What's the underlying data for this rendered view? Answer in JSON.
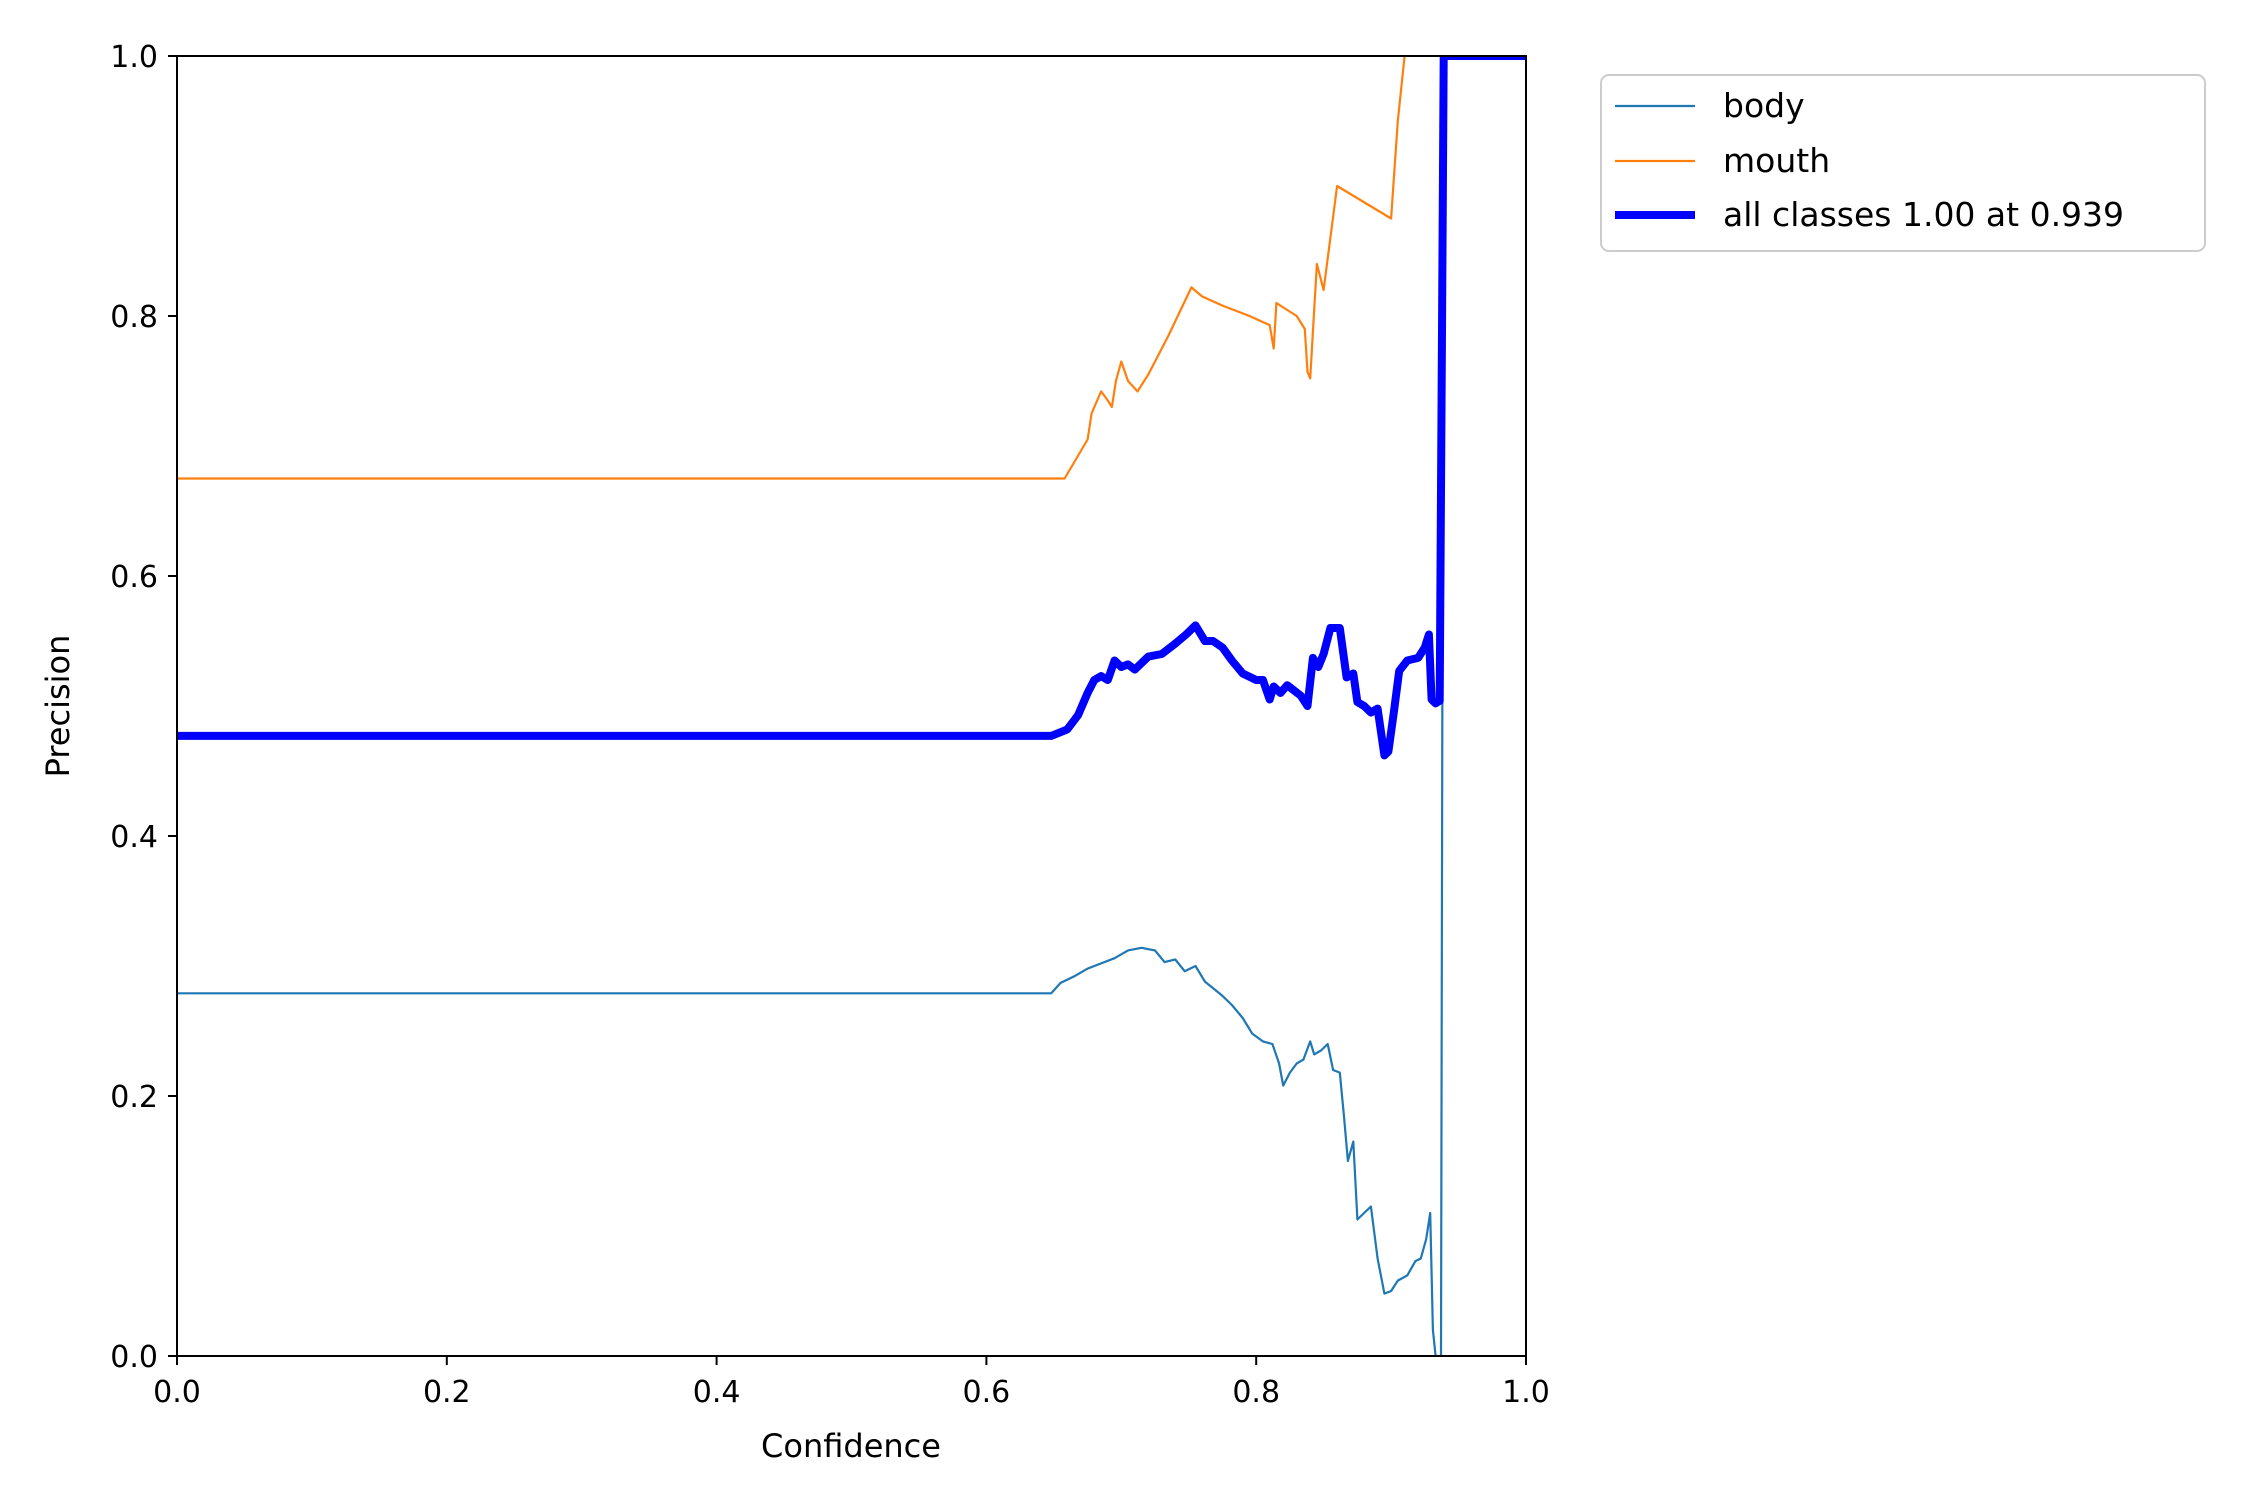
{
  "chart_data": {
    "type": "line",
    "title": "",
    "xlabel": "Confidence",
    "ylabel": "Precision",
    "xlim": [
      0,
      1
    ],
    "ylim": [
      0,
      1
    ],
    "xticks": [
      0.0,
      0.2,
      0.4,
      0.6,
      0.8,
      1.0
    ],
    "yticks": [
      0.0,
      0.2,
      0.4,
      0.6,
      0.8,
      1.0
    ],
    "xtick_labels": [
      "0.0",
      "0.2",
      "0.4",
      "0.6",
      "0.8",
      "1.0"
    ],
    "ytick_labels": [
      "0.0",
      "0.2",
      "0.4",
      "0.6",
      "0.8",
      "1.0"
    ],
    "grid": false,
    "legend": "outside-upper-right",
    "series": [
      {
        "name": "body",
        "color": "#1f77b4",
        "points": [
          [
            0.0,
            0.279
          ],
          [
            0.648,
            0.279
          ],
          [
            0.655,
            0.287
          ],
          [
            0.665,
            0.292
          ],
          [
            0.675,
            0.298
          ],
          [
            0.685,
            0.302
          ],
          [
            0.695,
            0.306
          ],
          [
            0.705,
            0.312
          ],
          [
            0.715,
            0.314
          ],
          [
            0.725,
            0.312
          ],
          [
            0.732,
            0.303
          ],
          [
            0.74,
            0.305
          ],
          [
            0.747,
            0.296
          ],
          [
            0.755,
            0.3
          ],
          [
            0.762,
            0.288
          ],
          [
            0.768,
            0.283
          ],
          [
            0.775,
            0.277
          ],
          [
            0.782,
            0.27
          ],
          [
            0.79,
            0.26
          ],
          [
            0.797,
            0.248
          ],
          [
            0.805,
            0.242
          ],
          [
            0.812,
            0.24
          ],
          [
            0.817,
            0.225
          ],
          [
            0.82,
            0.208
          ],
          [
            0.825,
            0.218
          ],
          [
            0.83,
            0.225
          ],
          [
            0.835,
            0.228
          ],
          [
            0.84,
            0.242
          ],
          [
            0.843,
            0.232
          ],
          [
            0.848,
            0.235
          ],
          [
            0.853,
            0.24
          ],
          [
            0.857,
            0.22
          ],
          [
            0.862,
            0.218
          ],
          [
            0.865,
            0.185
          ],
          [
            0.868,
            0.15
          ],
          [
            0.872,
            0.165
          ],
          [
            0.875,
            0.105
          ],
          [
            0.88,
            0.11
          ],
          [
            0.885,
            0.115
          ],
          [
            0.89,
            0.075
          ],
          [
            0.895,
            0.048
          ],
          [
            0.9,
            0.05
          ],
          [
            0.905,
            0.058
          ],
          [
            0.912,
            0.062
          ],
          [
            0.918,
            0.073
          ],
          [
            0.922,
            0.075
          ],
          [
            0.926,
            0.09
          ],
          [
            0.929,
            0.11
          ],
          [
            0.931,
            0.02
          ],
          [
            0.933,
            0.0
          ],
          [
            0.937,
            0.0
          ],
          [
            0.939,
            1.0
          ],
          [
            1.0,
            1.0
          ]
        ]
      },
      {
        "name": "mouth",
        "color": "#ff7f0e",
        "points": [
          [
            0.0,
            0.675
          ],
          [
            0.658,
            0.675
          ],
          [
            0.675,
            0.705
          ],
          [
            0.678,
            0.725
          ],
          [
            0.68,
            0.73
          ],
          [
            0.685,
            0.742
          ],
          [
            0.69,
            0.735
          ],
          [
            0.693,
            0.73
          ],
          [
            0.696,
            0.75
          ],
          [
            0.7,
            0.765
          ],
          [
            0.705,
            0.75
          ],
          [
            0.712,
            0.742
          ],
          [
            0.72,
            0.755
          ],
          [
            0.735,
            0.785
          ],
          [
            0.752,
            0.822
          ],
          [
            0.76,
            0.815
          ],
          [
            0.775,
            0.808
          ],
          [
            0.795,
            0.8
          ],
          [
            0.81,
            0.793
          ],
          [
            0.813,
            0.775
          ],
          [
            0.815,
            0.81
          ],
          [
            0.83,
            0.8
          ],
          [
            0.836,
            0.79
          ],
          [
            0.838,
            0.757
          ],
          [
            0.84,
            0.752
          ],
          [
            0.843,
            0.805
          ],
          [
            0.845,
            0.84
          ],
          [
            0.85,
            0.82
          ],
          [
            0.86,
            0.9
          ],
          [
            0.9,
            0.875
          ],
          [
            0.905,
            0.95
          ],
          [
            0.91,
            1.0
          ]
        ]
      },
      {
        "name": "all classes 1.00 at 0.939",
        "color": "#0000ff",
        "points": [
          [
            0.0,
            0.477
          ],
          [
            0.648,
            0.477
          ],
          [
            0.66,
            0.482
          ],
          [
            0.668,
            0.493
          ],
          [
            0.675,
            0.51
          ],
          [
            0.68,
            0.52
          ],
          [
            0.685,
            0.523
          ],
          [
            0.69,
            0.52
          ],
          [
            0.695,
            0.535
          ],
          [
            0.7,
            0.53
          ],
          [
            0.705,
            0.532
          ],
          [
            0.71,
            0.528
          ],
          [
            0.715,
            0.533
          ],
          [
            0.72,
            0.538
          ],
          [
            0.73,
            0.54
          ],
          [
            0.74,
            0.548
          ],
          [
            0.748,
            0.555
          ],
          [
            0.755,
            0.562
          ],
          [
            0.762,
            0.55
          ],
          [
            0.768,
            0.55
          ],
          [
            0.775,
            0.545
          ],
          [
            0.782,
            0.535
          ],
          [
            0.79,
            0.525
          ],
          [
            0.8,
            0.52
          ],
          [
            0.805,
            0.52
          ],
          [
            0.81,
            0.505
          ],
          [
            0.813,
            0.515
          ],
          [
            0.818,
            0.51
          ],
          [
            0.823,
            0.516
          ],
          [
            0.828,
            0.512
          ],
          [
            0.833,
            0.508
          ],
          [
            0.838,
            0.5
          ],
          [
            0.842,
            0.537
          ],
          [
            0.846,
            0.53
          ],
          [
            0.85,
            0.54
          ],
          [
            0.855,
            0.56
          ],
          [
            0.862,
            0.56
          ],
          [
            0.867,
            0.522
          ],
          [
            0.872,
            0.525
          ],
          [
            0.875,
            0.503
          ],
          [
            0.88,
            0.5
          ],
          [
            0.885,
            0.495
          ],
          [
            0.89,
            0.498
          ],
          [
            0.895,
            0.462
          ],
          [
            0.898,
            0.465
          ],
          [
            0.902,
            0.495
          ],
          [
            0.906,
            0.527
          ],
          [
            0.912,
            0.535
          ],
          [
            0.92,
            0.537
          ],
          [
            0.925,
            0.545
          ],
          [
            0.928,
            0.555
          ],
          [
            0.93,
            0.505
          ],
          [
            0.933,
            0.502
          ],
          [
            0.936,
            0.504
          ],
          [
            0.939,
            1.0
          ],
          [
            1.0,
            1.0
          ]
        ]
      }
    ]
  }
}
